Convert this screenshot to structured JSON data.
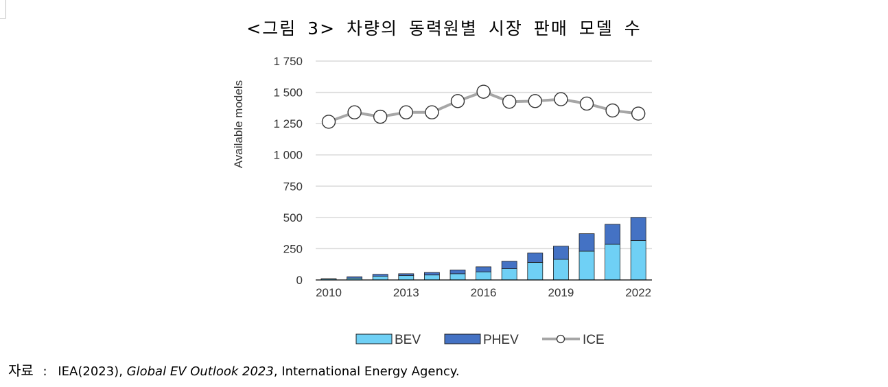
{
  "figure": {
    "title": "<그림 3> 차량의 동력원별 시장 판매 모델 수",
    "source_label": "자료",
    "source_sep": ":",
    "source_pre": "IEA(2023),",
    "source_italic": "Global EV Outlook 2023",
    "source_post": ", International Energy Agency."
  },
  "colors": {
    "bev": "#6fd0f5",
    "phev": "#4472c4",
    "ice_line": "#a6a6a6",
    "grid": "#d9d9d9"
  },
  "chart_data": {
    "type": "bar",
    "ylabel": "Available models",
    "ylim": [
      0,
      1750
    ],
    "yticks": [
      0,
      250,
      500,
      750,
      1000,
      1250,
      1500,
      1750
    ],
    "ytick_labels": [
      "0",
      "250",
      "500",
      "750",
      "1 000",
      "1 250",
      "1 500",
      "1 750"
    ],
    "x": [
      2010,
      2011,
      2012,
      2013,
      2014,
      2015,
      2016,
      2017,
      2018,
      2019,
      2020,
      2021,
      2022
    ],
    "xtick_labels": [
      "2010",
      "2013",
      "2016",
      "2019",
      "2022"
    ],
    "xtick_years": [
      2010,
      2013,
      2016,
      2019,
      2022
    ],
    "grid": true,
    "legend_position": "bottom",
    "series": [
      {
        "name": "BEV",
        "type": "stacked-bar",
        "values": [
          8,
          15,
          30,
          35,
          40,
          50,
          65,
          90,
          140,
          165,
          230,
          285,
          315
        ]
      },
      {
        "name": "PHEV",
        "type": "stacked-bar",
        "values": [
          2,
          10,
          15,
          15,
          20,
          30,
          40,
          60,
          75,
          105,
          140,
          160,
          185
        ]
      },
      {
        "name": "ICE",
        "type": "line",
        "values": [
          1265,
          1340,
          1305,
          1340,
          1340,
          1430,
          1505,
          1425,
          1430,
          1445,
          1410,
          1355,
          1330
        ]
      }
    ]
  }
}
